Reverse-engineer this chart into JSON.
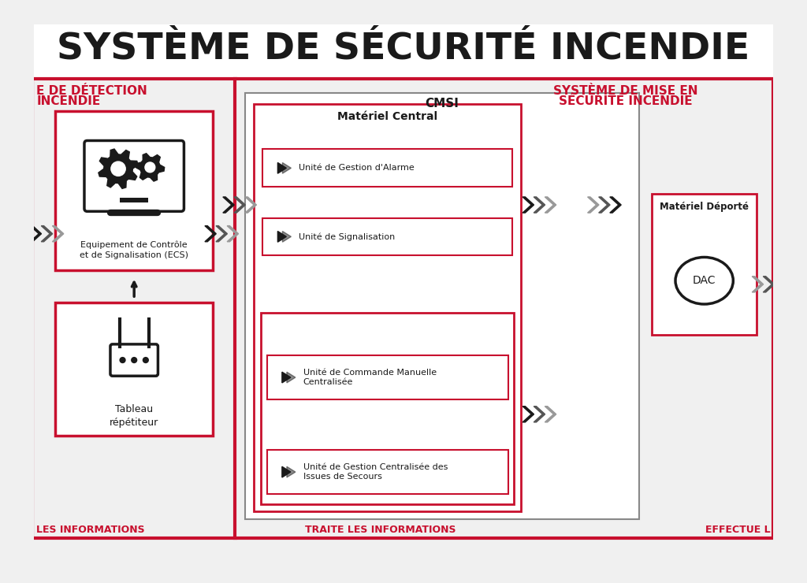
{
  "title": "SYSTÈME DE SÉCURITÉ INCENDIE",
  "bg_color": "#f0f0f0",
  "red": "#c8102e",
  "black": "#1a1a1a",
  "gray_light": "#e8e8e8",
  "section1_label_top": "E DE DÉTECTION",
  "section1_label_top2": "INCENDIE",
  "section1_label_bot": "LES INFORMATIONS",
  "section2_label_top1": "SYSTÈME DE MISE EN",
  "section2_label_top2": "SÉCURITÉ INCENDIE",
  "section2_label_bot": "TRAITE LES INFORMATIONS",
  "section3_label_bot": "EFFECTUE L",
  "cmsi_label": "CMSI",
  "materiel_central_label": "Matériel Central",
  "materiel_deporte_label": "Matériel Déporté",
  "dac_label": "DAC",
  "ecs_label": "Equipement de Contrôle\net de Signalisation (ECS)",
  "tableau_label": "Tableau\nrépétiteur",
  "unit1": "Unité de Gestion d'Alarme",
  "unit2": "Unité de Signalisation",
  "unit3": "Unité de Commande Manuelle\nCentralisée",
  "unit4": "Unité de Gestion Centralisée des\nIssues de Secours"
}
